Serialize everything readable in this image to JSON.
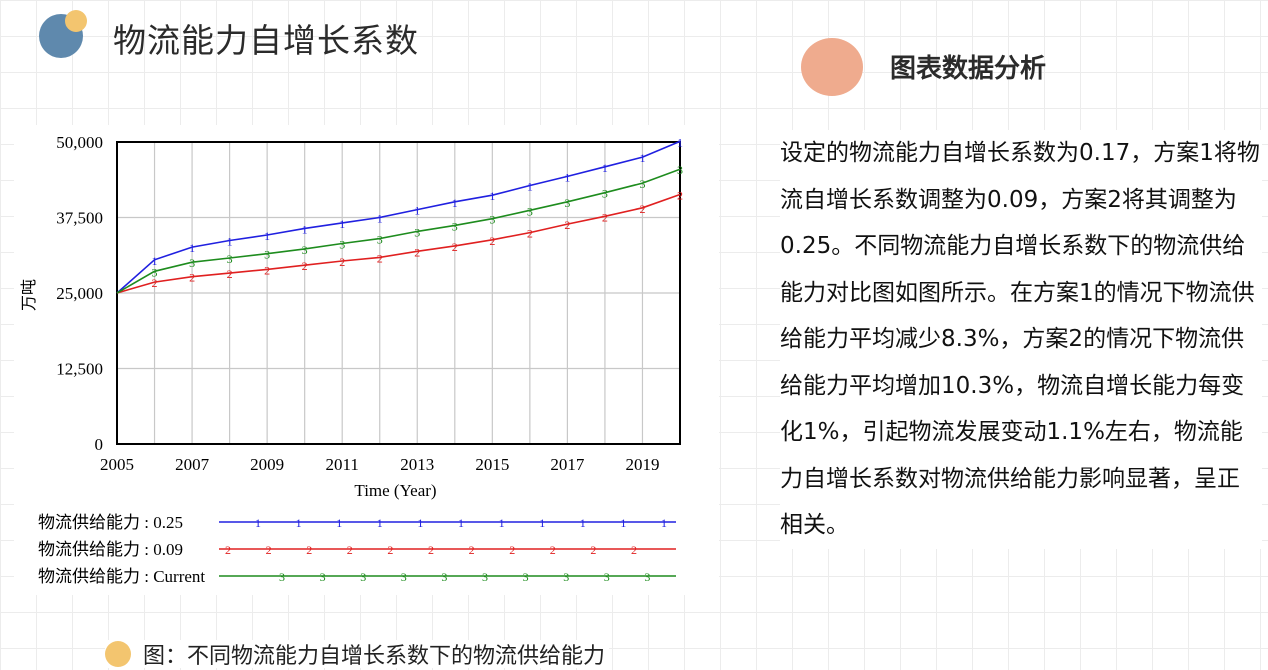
{
  "header": {
    "title": "物流能力自增长系数"
  },
  "analysis": {
    "title": "图表数据分析",
    "text": "设定的物流能力自增长系数为0.17，方案1将物流自增长系数调整为0.09，方案2将其调整为0.25。不同物流能力自增长系数下的物流供给能力对比图如图所示。在方案1的情况下物流供给能力平均减少8.3%，方案2的情况下物流供给能力平均增加10.3%，物流自增长能力每变化1%，引起物流发展变动1.1%左右，物流能力自增长系数对物流供给能力影响显著，呈正相关。"
  },
  "caption": {
    "text": "图：不同物流能力自增长系数下的物流供给能力"
  },
  "chart_data": {
    "type": "line",
    "xlabel": "Time (Year)",
    "ylabel": "万吨",
    "xlim": [
      2005,
      2020
    ],
    "ylim": [
      0,
      50000
    ],
    "xticks": [
      2005,
      2007,
      2009,
      2011,
      2013,
      2015,
      2017,
      2019
    ],
    "yticks": [
      0,
      12500,
      25000,
      37500,
      50000
    ],
    "ytick_labels": [
      "0",
      "12,500",
      "25,000",
      "37,500",
      "50,000"
    ],
    "grid": true,
    "x": [
      2005,
      2006,
      2007,
      2008,
      2009,
      2010,
      2011,
      2012,
      2013,
      2014,
      2015,
      2016,
      2017,
      2018,
      2019,
      2020
    ],
    "series": [
      {
        "name": "物流供给能力 : 0.25",
        "marker": "1",
        "color": "#2020e0",
        "values": [
          25000,
          30500,
          32600,
          33700,
          34600,
          35700,
          36600,
          37500,
          38800,
          40100,
          41200,
          42800,
          44300,
          45900,
          47500,
          50100
        ]
      },
      {
        "name": "物流供给能力 : 0.09",
        "marker": "2",
        "color": "#e02020",
        "values": [
          25000,
          26800,
          27700,
          28300,
          28900,
          29600,
          30300,
          30900,
          31900,
          32800,
          33800,
          35000,
          36400,
          37700,
          39100,
          41300
        ]
      },
      {
        "name": "物流供给能力 : Current",
        "marker": "3",
        "color": "#1e8c1e",
        "values": [
          25000,
          28600,
          30100,
          30800,
          31500,
          32300,
          33200,
          34000,
          35200,
          36200,
          37300,
          38700,
          40100,
          41600,
          43200,
          45500
        ]
      }
    ]
  }
}
